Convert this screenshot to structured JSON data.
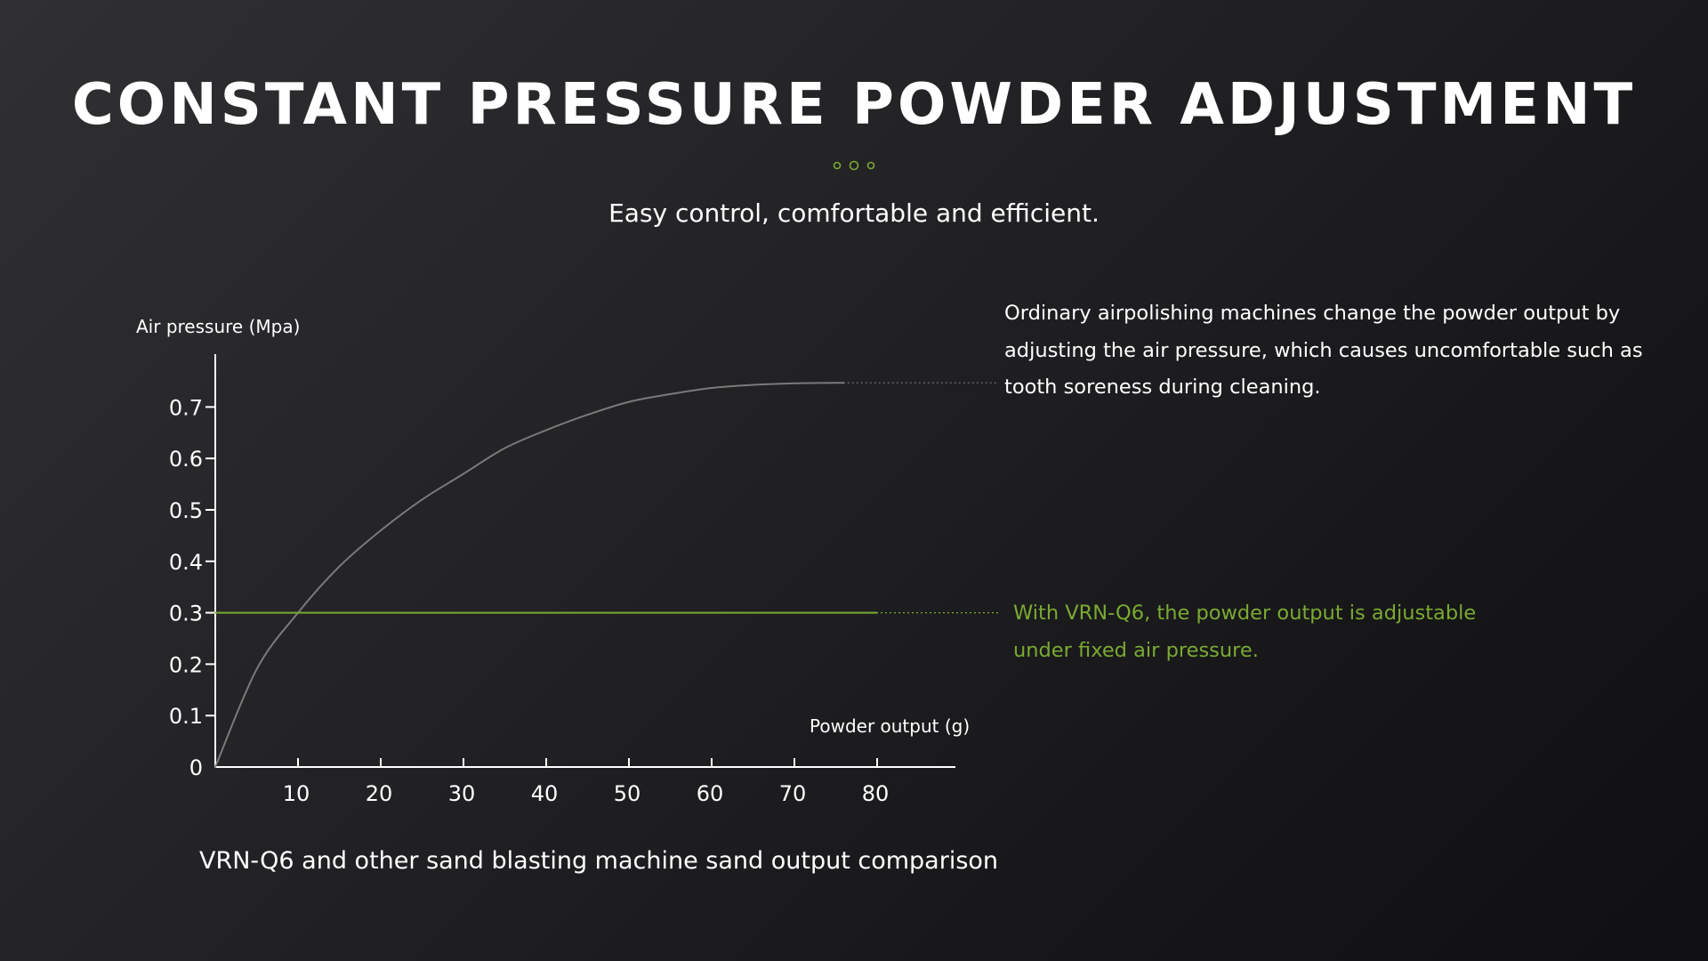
{
  "header": {
    "title": "CONSTANT PRESSURE POWDER ADJUSTMENT",
    "subtitle": "Easy control, comfortable and efficient."
  },
  "notes": {
    "ordinary": "Ordinary airpolishing machines change the powder output by adjusting the air pressure, which causes uncomfortable such as tooth soreness during cleaning.",
    "vrn": "With VRN-Q6, the powder output is adjustable under fixed air pressure."
  },
  "colors": {
    "accent": "#7aaa32",
    "ordinary_curve": "#7a7a7a",
    "axis": "#ffffff",
    "title": "#ffffff"
  },
  "chart_data": {
    "type": "line",
    "title": "VRN-Q6 and other sand blasting machine sand output comparison",
    "xlabel": "Powder output (g)",
    "ylabel": "Air pressure (Mpa)",
    "x_ticks": [
      10,
      20,
      30,
      40,
      50,
      60,
      70,
      80
    ],
    "y_ticks": [
      0,
      0.1,
      0.2,
      0.3,
      0.4,
      0.5,
      0.6,
      0.7
    ],
    "y_tick_labels": [
      "0",
      "0.1",
      "0.2",
      "0.3",
      "0.4",
      "0.5",
      "0.6",
      "0.7"
    ],
    "xlim": [
      0,
      90
    ],
    "ylim": [
      0,
      0.8
    ],
    "grid": false,
    "legend": "none",
    "series": [
      {
        "color": "#7a7a7a",
        "x": [
          0,
          5,
          10,
          15,
          20,
          25,
          30,
          35,
          40,
          45,
          50,
          55,
          60,
          65,
          70,
          76
        ],
        "y": [
          0,
          0.19,
          0.3,
          0.39,
          0.46,
          0.52,
          0.57,
          0.62,
          0.655,
          0.685,
          0.71,
          0.725,
          0.737,
          0.743,
          0.746,
          0.747
        ]
      },
      {
        "color": "#7aaa32",
        "x": [
          0,
          80
        ],
        "y": [
          0.3,
          0.3
        ]
      }
    ]
  }
}
